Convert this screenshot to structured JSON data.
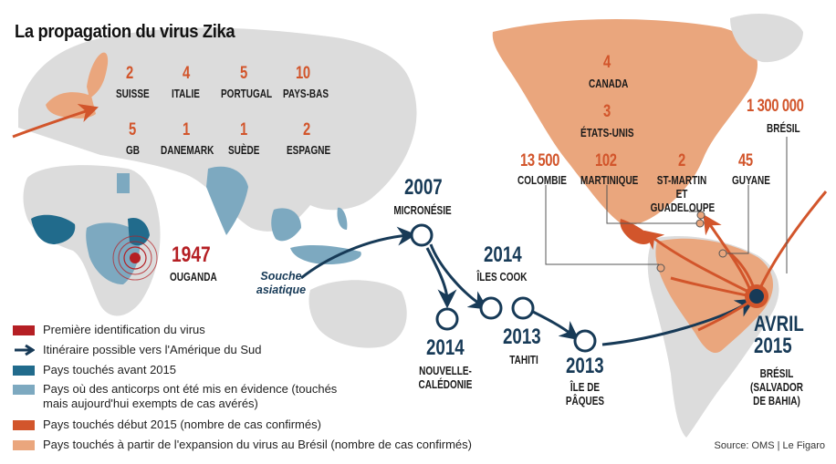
{
  "title": "La propagation du virus Zika",
  "source": "Source: OMS | Le Figaro",
  "colors": {
    "first_id": "#b51f24",
    "route": "#173a57",
    "before_2015": "#216b8c",
    "antibodies": "#7da9c0",
    "early_2015": "#d2552b",
    "brazil_expansion": "#eaa67d",
    "land": "#dcdcdc"
  },
  "europe": [
    {
      "count": "2",
      "country": "SUISSE"
    },
    {
      "count": "4",
      "country": "ITALIE"
    },
    {
      "count": "5",
      "country": "PORTUGAL"
    },
    {
      "count": "10",
      "country": "PAYS-BAS"
    },
    {
      "count": "5",
      "country": "GB"
    },
    {
      "count": "1",
      "country": "DANEMARK"
    },
    {
      "count": "1",
      "country": "SUÈDE"
    },
    {
      "count": "2",
      "country": "ESPAGNE"
    }
  ],
  "origin": {
    "year": "1947",
    "place": "OUGANDA"
  },
  "strain_label": "Souche asiatique",
  "route_points": [
    {
      "year": "2007",
      "place": "MICRONÉSIE"
    },
    {
      "year": "2014",
      "place": "ÎLES COOK"
    },
    {
      "year": "2014",
      "place": "NOUVELLE-CALÉDONIE"
    },
    {
      "year": "2013",
      "place": "TAHITI"
    },
    {
      "year": "2013",
      "place": "ÎLE DE PÂQUES"
    },
    {
      "year": "AVRIL 2015",
      "place": "BRÉSIL (SALVADOR DE BAHIA)"
    }
  ],
  "americas": [
    {
      "count": "4",
      "country": "CANADA"
    },
    {
      "count": "3",
      "country": "ÉTATS-UNIS"
    },
    {
      "count": "13 500",
      "country": "COLOMBIE"
    },
    {
      "count": "102",
      "country": "MARTINIQUE"
    },
    {
      "count": "2",
      "country": "ST-MARTIN ET GUADELOUPE"
    },
    {
      "count": "45",
      "country": "GUYANE"
    },
    {
      "count": "1 300 000",
      "country": "BRÉSIL"
    }
  ],
  "legend": [
    {
      "key": "first_id",
      "text": "Première identification du virus"
    },
    {
      "key": "route",
      "text": "Itinéraire possible vers l'Amérique du Sud"
    },
    {
      "key": "before_2015",
      "text": "Pays touchés avant 2015"
    },
    {
      "key": "antibodies",
      "text": "Pays où des anticorps ont été mis en évidence (touchés mais aujourd'hui exempts de cas avérés)"
    },
    {
      "key": "early_2015",
      "text": "Pays touchés début 2015 (nombre de cas confirmés)"
    },
    {
      "key": "brazil_expansion",
      "text": "Pays touchés à partir de l'expansion du virus au Brésil (nombre de cas confirmés)"
    }
  ]
}
